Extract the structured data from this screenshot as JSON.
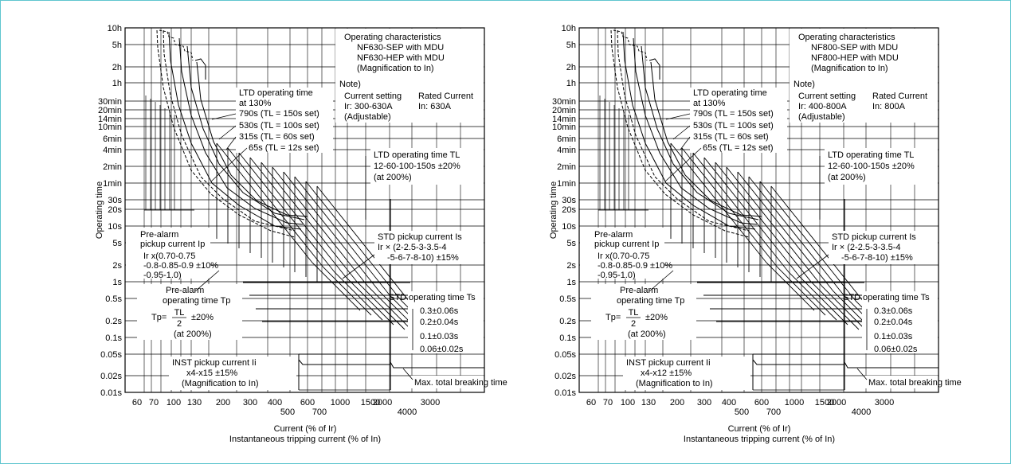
{
  "frame_color": "#5fc6cf",
  "line_color": "#000000",
  "y_tick_labels": [
    "10h",
    "5h",
    "2h",
    "1h",
    "30min",
    "20min",
    "14min",
    "10min",
    "6min",
    "4min",
    "2min",
    "1min",
    "30s",
    "20s",
    "10s",
    "5s",
    "2s",
    "1s",
    "0.5s",
    "0.2s",
    "0.1s",
    "0.05s",
    "0.02s",
    "0.01s"
  ],
  "x_tick_labels_row1": [
    "60",
    "70",
    "100",
    "130",
    "200",
    "300",
    "400",
    "600",
    "1000",
    "1500"
  ],
  "x_tick_labels_row2": [
    "500",
    "700"
  ],
  "y_axis_label": "Operating time",
  "x_axis_label_1": "Current (% of Ir)",
  "x_axis_label_2": "Instantaneous tripping current (% of In)",
  "charts": [
    {
      "id": "left",
      "title_block": [
        "Operating characteristics",
        "NF630-SEP with MDU",
        "NF630-HEP with MDU",
        "(Magnification to In)"
      ],
      "note_label": "Note)",
      "current_setting": [
        "Current setting",
        "Ir: 300-630A",
        "(Adjustable)"
      ],
      "rated_current": [
        "Rated Current",
        "In: 630A"
      ],
      "ltd_callout": [
        "LTD operating time",
        "at 130%",
        "790s (TL = 150s set)",
        "530s (TL = 100s set)",
        "315s (TL = 60s set)",
        "65s (TL = 12s set)"
      ],
      "ltd_tl": [
        "LTD operating time TL",
        "12-60-100-150s ±20%",
        "(at 200%)"
      ],
      "std_pickup": [
        "STD pickup current Is",
        "Ir × (2-2.5-3-3.5-4",
        "-5-6-7-8-10) ±15%"
      ],
      "prealarm_pickup": [
        "Pre-alarm",
        "pickup current Ip",
        "Ir x(0.70-0.75",
        "-0.8-0.85-0.9  ±10%",
        "-0.95-1.0)"
      ],
      "prealarm_time": [
        "Pre-alarm",
        "operating time Tp",
        "Tp=",
        "TL",
        "2",
        "±20%",
        "(at 200%)"
      ],
      "std_time": [
        "STD operating time Ts",
        "0.3±0.06s",
        "0.2±0.04s",
        "0.1±0.03s",
        "0.06±0.02s"
      ],
      "inst": [
        "INST pickup current Ii",
        "x4-x15     ±15%",
        "(Magnification to In)"
      ],
      "max_break": "Max. total breaking time",
      "inst_x_labels_row1": [
        "2000",
        "3000"
      ],
      "inst_x_labels_row2": [
        "4000"
      ]
    },
    {
      "id": "right",
      "title_block": [
        "Operating characteristics",
        "NF800-SEP with MDU",
        "NF800-HEP with MDU",
        "(Magnification to In)"
      ],
      "note_label": "Note)",
      "current_setting": [
        "Current setting",
        "Ir: 400-800A",
        "(Adjustable)"
      ],
      "rated_current": [
        "Rated Current",
        "In: 800A"
      ],
      "ltd_callout": [
        "LTD operating time",
        "at 130%",
        "790s (TL = 150s set)",
        "530s (TL = 100s set)",
        "315s (TL = 60s set)",
        "65s (TL = 12s set)"
      ],
      "ltd_tl": [
        "LTD operating time TL",
        "12-60-100-150s ±20%",
        "(at 200%)"
      ],
      "std_pickup": [
        "STD pickup current Is",
        "Ir × (2-2.5-3-3.5-4",
        "-5-6-7-8-10) ±15%"
      ],
      "prealarm_pickup": [
        "Pre-alarm",
        "pickup current Ip",
        "Ir x(0.70-0.75",
        "-0.8-0.85-0.9  ±10%",
        "-0.95-1.0)"
      ],
      "prealarm_time": [
        "Pre-alarm",
        "operating time Tp",
        "Tp=",
        "TL",
        "2",
        "±20%",
        "(at 200%)"
      ],
      "std_time": [
        "STD operating time Ts",
        "0.3±0.06s",
        "0.2±0.04s",
        "0.1±0.03s",
        "0.06±0.02s"
      ],
      "inst": [
        "INST pickup current Ii",
        "x4-x12     ±15%",
        "(Magnification to In)"
      ],
      "max_break": "Max. total breaking time",
      "inst_x_labels_row1": [
        "2000",
        "3000"
      ],
      "inst_x_labels_row2": [
        "4000"
      ]
    }
  ]
}
